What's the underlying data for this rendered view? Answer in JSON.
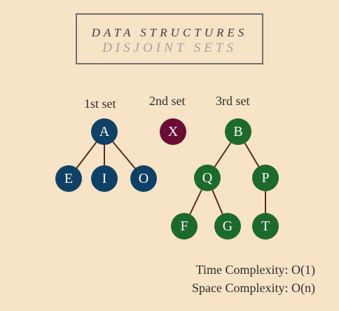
{
  "title": {
    "line1": "DATA STRUCTURES",
    "line2": "DISJOINT SETS"
  },
  "sets": [
    {
      "label": "1st set",
      "color": "#0f4166",
      "nodes": [
        "A",
        "E",
        "I",
        "O"
      ]
    },
    {
      "label": "2nd set",
      "color": "#6a0c34",
      "nodes": [
        "X"
      ]
    },
    {
      "label": "3rd set",
      "color": "#1c6a2c",
      "nodes": [
        "B",
        "Q",
        "P",
        "F",
        "G",
        "T"
      ]
    }
  ],
  "edges": [
    [
      "A",
      "E"
    ],
    [
      "A",
      "I"
    ],
    [
      "A",
      "O"
    ],
    [
      "B",
      "Q"
    ],
    [
      "B",
      "P"
    ],
    [
      "Q",
      "F"
    ],
    [
      "Q",
      "G"
    ],
    [
      "P",
      "T"
    ]
  ],
  "complexity": {
    "time": "Time Complexity: O(1)",
    "space": "Space Complexity: O(n)"
  },
  "colors": {
    "background": "#f7e3c6",
    "edge": "#5a2a1e"
  }
}
